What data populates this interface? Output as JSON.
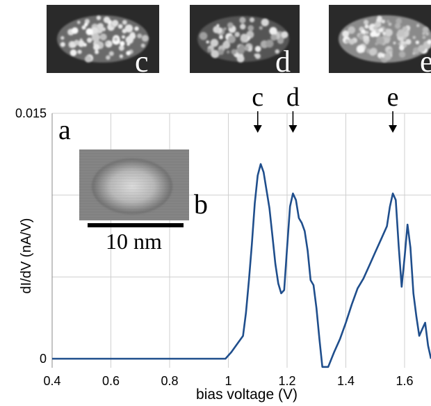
{
  "chart_data": {
    "type": "line",
    "xlabel": "bias voltage (V)",
    "ylabel": "dI/dV  (nA/V)",
    "xlim": [
      0.4,
      1.7
    ],
    "ylim": [
      0,
      0.015
    ],
    "x_ticks": [
      "0.4",
      "0.6",
      "0.8",
      "1",
      "1.2",
      "1.4",
      "1.6"
    ],
    "y_ticks": [
      "0",
      "0.015"
    ],
    "grid": true,
    "line_color": "#1f4e8c",
    "series": [
      {
        "values": [
          [
            0.4,
            0.0
          ],
          [
            0.6,
            0.0
          ],
          [
            0.8,
            0.0
          ],
          [
            0.99,
            0.0
          ],
          [
            1.01,
            0.0004
          ],
          [
            1.03,
            0.0009
          ],
          [
            1.05,
            0.0014
          ],
          [
            1.06,
            0.0028
          ],
          [
            1.07,
            0.0048
          ],
          [
            1.08,
            0.007
          ],
          [
            1.09,
            0.0095
          ],
          [
            1.1,
            0.0112
          ],
          [
            1.11,
            0.0119
          ],
          [
            1.12,
            0.0114
          ],
          [
            1.13,
            0.0103
          ],
          [
            1.14,
            0.0092
          ],
          [
            1.15,
            0.0075
          ],
          [
            1.16,
            0.0058
          ],
          [
            1.17,
            0.0046
          ],
          [
            1.18,
            0.004
          ],
          [
            1.19,
            0.0042
          ],
          [
            1.2,
            0.0068
          ],
          [
            1.21,
            0.0093
          ],
          [
            1.22,
            0.0101
          ],
          [
            1.23,
            0.0097
          ],
          [
            1.24,
            0.0086
          ],
          [
            1.25,
            0.0083
          ],
          [
            1.26,
            0.0078
          ],
          [
            1.27,
            0.0066
          ],
          [
            1.28,
            0.0048
          ],
          [
            1.29,
            0.0045
          ],
          [
            1.3,
            0.0031
          ],
          [
            1.31,
            0.0012
          ],
          [
            1.32,
            -0.0005
          ],
          [
            1.34,
            -0.0005
          ],
          [
            1.36,
            0.0004
          ],
          [
            1.38,
            0.0012
          ],
          [
            1.4,
            0.0022
          ],
          [
            1.42,
            0.0033
          ],
          [
            1.44,
            0.0043
          ],
          [
            1.46,
            0.0049
          ],
          [
            1.48,
            0.0057
          ],
          [
            1.5,
            0.0065
          ],
          [
            1.52,
            0.0073
          ],
          [
            1.54,
            0.0081
          ],
          [
            1.55,
            0.0093
          ],
          [
            1.56,
            0.0101
          ],
          [
            1.57,
            0.0097
          ],
          [
            1.58,
            0.0069
          ],
          [
            1.59,
            0.0044
          ],
          [
            1.6,
            0.0062
          ],
          [
            1.61,
            0.0082
          ],
          [
            1.62,
            0.0068
          ],
          [
            1.63,
            0.004
          ],
          [
            1.64,
            0.0026
          ],
          [
            1.65,
            0.0014
          ],
          [
            1.66,
            0.0018
          ],
          [
            1.67,
            0.0022
          ],
          [
            1.68,
            0.0008
          ],
          [
            1.69,
            0.0
          ]
        ]
      }
    ],
    "annotations": [
      {
        "text": "c",
        "x": 1.1
      },
      {
        "text": "d",
        "x": 1.22
      },
      {
        "text": "e",
        "x": 1.56
      }
    ]
  },
  "panel_labels": {
    "a": "a",
    "b": "b"
  },
  "inset": {
    "scale_bar_label": "10 nm"
  },
  "map_thumbnails": [
    {
      "label": "c"
    },
    {
      "label": "d"
    },
    {
      "label": "e"
    }
  ]
}
